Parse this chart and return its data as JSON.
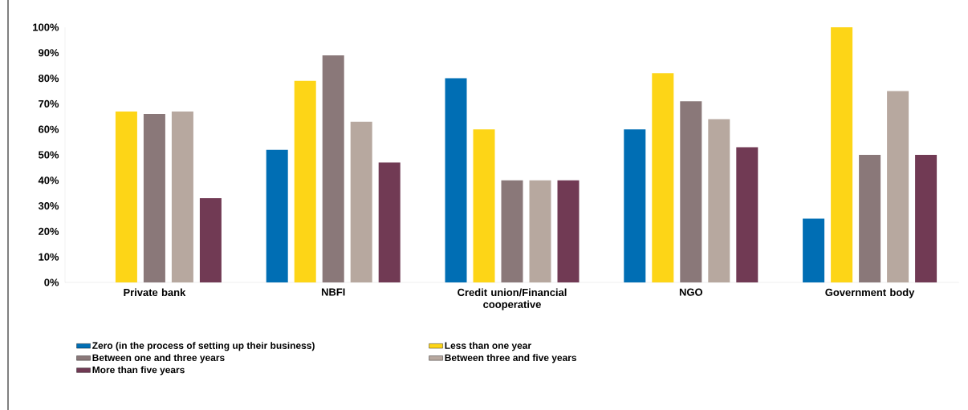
{
  "chart_data": {
    "type": "bar",
    "categories": [
      "Private bank",
      "NBFI",
      "Credit union/Financial cooperative",
      "NGO",
      "Government body"
    ],
    "series": [
      {
        "name": "Zero (in the process of setting up their business)",
        "color": "#006eb4",
        "values": [
          null,
          52,
          80,
          60,
          25
        ]
      },
      {
        "name": "Less than one year",
        "color": "#fdd517",
        "values": [
          67,
          79,
          60,
          82,
          100
        ]
      },
      {
        "name": "Between one and three years",
        "color": "#8a7879",
        "values": [
          66,
          89,
          40,
          71,
          50
        ]
      },
      {
        "name": "Between three and five years",
        "color": "#b7a89f",
        "values": [
          67,
          63,
          40,
          64,
          75
        ]
      },
      {
        "name": "More than five years",
        "color": "#713a54",
        "values": [
          33,
          47,
          40,
          53,
          50
        ]
      }
    ],
    "ylim": [
      0,
      100
    ],
    "yticks": [
      {
        "value": 0,
        "label": "0%"
      },
      {
        "value": 10,
        "label": "10%"
      },
      {
        "value": 20,
        "label": "20%"
      },
      {
        "value": 30,
        "label": "30%"
      },
      {
        "value": 40,
        "label": "40%"
      },
      {
        "value": 50,
        "label": "50%"
      },
      {
        "value": 60,
        "label": "60%"
      },
      {
        "value": 70,
        "label": "70%"
      },
      {
        "value": 80,
        "label": "80%"
      },
      {
        "value": 90,
        "label": "90%"
      },
      {
        "value": 100,
        "label": "100%"
      }
    ],
    "grid": false,
    "legend": "bottom"
  }
}
